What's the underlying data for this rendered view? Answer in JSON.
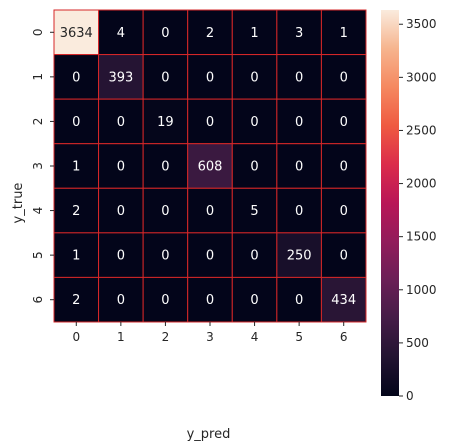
{
  "chart_data": {
    "type": "heatmap",
    "xlabel": "y_pred",
    "ylabel": "y_true",
    "x_categories": [
      "0",
      "1",
      "2",
      "3",
      "4",
      "5",
      "6"
    ],
    "y_categories": [
      "0",
      "1",
      "2",
      "3",
      "4",
      "5",
      "6"
    ],
    "values": [
      [
        3634,
        4,
        0,
        2,
        1,
        3,
        1
      ],
      [
        0,
        393,
        0,
        0,
        0,
        0,
        0
      ],
      [
        0,
        0,
        19,
        0,
        0,
        0,
        0
      ],
      [
        1,
        0,
        0,
        608,
        0,
        0,
        0
      ],
      [
        2,
        0,
        0,
        0,
        5,
        0,
        0
      ],
      [
        1,
        0,
        0,
        0,
        0,
        250,
        0
      ],
      [
        2,
        0,
        0,
        0,
        0,
        0,
        434
      ]
    ],
    "colorbar": {
      "min": 0,
      "max": 3634,
      "ticks": [
        0,
        500,
        1000,
        1500,
        2000,
        2500,
        3000,
        3500
      ]
    },
    "colormap": "rocket",
    "cell_border_color": "#d62728",
    "annotation_light_color": "#ffffff",
    "annotation_dark_color": "#262626"
  }
}
